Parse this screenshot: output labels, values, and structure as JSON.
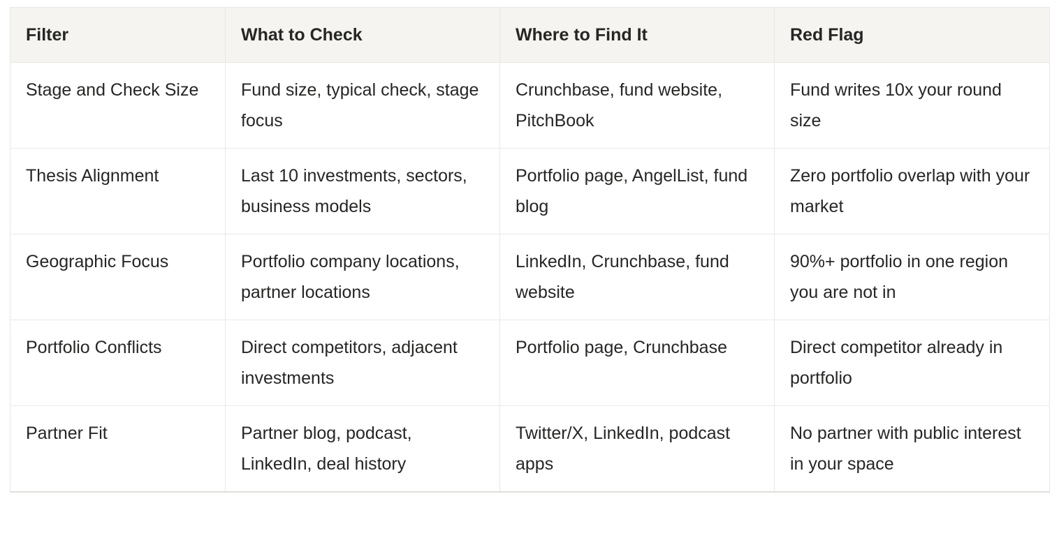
{
  "table": {
    "headers": [
      "Filter",
      "What to Check",
      "Where to Find It",
      "Red Flag"
    ],
    "rows": [
      [
        "Stage and Check Size",
        "Fund size, typical check, stage focus",
        "Crunchbase, fund website, PitchBook",
        "Fund writes 10x your round size"
      ],
      [
        "Thesis Alignment",
        "Last 10 investments, sectors, business models",
        "Portfolio page, AngelList, fund blog",
        "Zero portfolio overlap with your market"
      ],
      [
        "Geographic Focus",
        "Portfolio company locations, partner locations",
        "LinkedIn, Crunchbase, fund website",
        "90%+ portfolio in one region you are not in"
      ],
      [
        "Portfolio Conflicts",
        "Direct competitors, adjacent investments",
        "Portfolio page, Crunchbase",
        "Direct competitor already in portfolio"
      ],
      [
        "Partner Fit",
        "Partner blog, podcast, LinkedIn, deal history",
        "Twitter/X, LinkedIn, podcast apps",
        "No partner with public interest in your space"
      ]
    ]
  },
  "colors": {
    "header_bg": "#f5f4f0",
    "border": "#e9e8e5",
    "border_strong": "#e0dfdc",
    "text": "#262625",
    "background": "#ffffff"
  }
}
